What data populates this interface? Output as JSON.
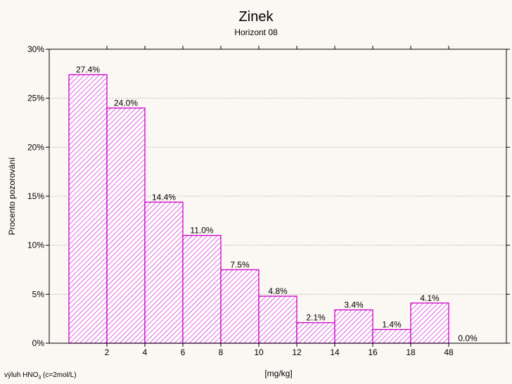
{
  "chart_data": {
    "type": "bar",
    "title": "Zinek",
    "subtitle": "Horizont 08",
    "xlabel": "[mg/kg]",
    "ylabel": "Procento pozorování",
    "ylim": [
      0,
      30
    ],
    "y_ticks": [
      "0%",
      "5%",
      "10%",
      "15%",
      "20%",
      "25%",
      "30%"
    ],
    "x_ticks": [
      "2",
      "4",
      "6",
      "8",
      "10",
      "12",
      "14",
      "16",
      "18",
      "48"
    ],
    "bins": [
      {
        "from": "",
        "to": "2"
      },
      {
        "from": "2",
        "to": "4"
      },
      {
        "from": "4",
        "to": "6"
      },
      {
        "from": "6",
        "to": "8"
      },
      {
        "from": "8",
        "to": "10"
      },
      {
        "from": "10",
        "to": "12"
      },
      {
        "from": "12",
        "to": "14"
      },
      {
        "from": "14",
        "to": "16"
      },
      {
        "from": "16",
        "to": "18"
      },
      {
        "from": "18",
        "to": "48"
      },
      {
        "from": "48",
        "to": ""
      }
    ],
    "values": [
      27.4,
      24.0,
      14.4,
      11.0,
      7.5,
      4.8,
      2.1,
      3.4,
      1.4,
      4.1,
      0.0
    ],
    "labels": [
      "27.4%",
      "24.0%",
      "14.4%",
      "11.0%",
      "7.5%",
      "4.8%",
      "2.1%",
      "3.4%",
      "1.4%",
      "4.1%",
      "0.0%"
    ],
    "grid": true,
    "bar_color": "#cc00cc",
    "footnote": {
      "prefix": "výluh HNO",
      "sub": "3",
      "suffix": " (c=2mol/L)"
    }
  }
}
